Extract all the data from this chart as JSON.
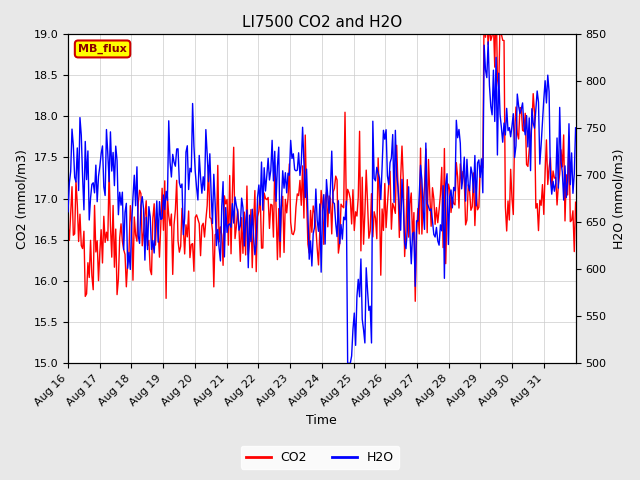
{
  "title": "LI7500 CO2 and H2O",
  "xlabel": "Time",
  "ylabel_left": "CO2 (mmol/m3)",
  "ylabel_right": "H2O (mmol/m3)",
  "co2_ylim": [
    15.0,
    19.0
  ],
  "h2o_ylim": [
    500,
    850
  ],
  "x_tick_labels": [
    "Aug 16",
    "Aug 17",
    "Aug 18",
    "Aug 19",
    "Aug 20",
    "Aug 21",
    "Aug 22",
    "Aug 23",
    "Aug 24",
    "Aug 25",
    "Aug 26",
    "Aug 27",
    "Aug 28",
    "Aug 29",
    "Aug 30",
    "Aug 31"
  ],
  "co2_color": "#FF0000",
  "h2o_color": "#0000FF",
  "background_color": "#E8E8E8",
  "plot_bg_color": "#FFFFFF",
  "annotation_text": "MB_flux",
  "annotation_bg": "#FFFF00",
  "annotation_border": "#CC0000",
  "legend_co2": "CO2",
  "legend_h2o": "H2O",
  "title_fontsize": 11,
  "axis_fontsize": 9,
  "tick_fontsize": 8,
  "co2_yticks": [
    15.0,
    15.5,
    16.0,
    16.5,
    17.0,
    17.5,
    18.0,
    18.5,
    19.0
  ],
  "h2o_yticks": [
    500,
    550,
    600,
    650,
    700,
    750,
    800,
    850
  ]
}
